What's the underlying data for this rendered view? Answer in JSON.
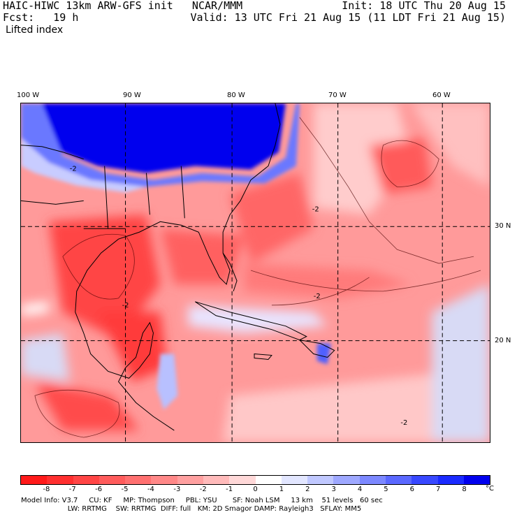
{
  "header": {
    "title": "HAIC-HIWC 13km ARW-GFS init   NCAR/MMM",
    "forecast": "Fcst:   19 h",
    "field": "Lifted index",
    "init": "Init: 18 UTC Thu 20 Aug 15",
    "valid": "Valid: 13 UTC Fri 21 Aug 15 (11 LDT Fri 21 Aug 15)"
  },
  "axes": {
    "longitudes": [
      "100 W",
      "90 W",
      "80 W",
      "70 W",
      "60 W"
    ],
    "latitudes": [
      "30 N",
      "20 N"
    ]
  },
  "contour_labels": [
    "-2",
    "-2",
    "-2",
    "-2",
    "-2"
  ],
  "colorbar": {
    "labels": [
      "-8",
      "-7",
      "-6",
      "-5",
      "-4",
      "-3",
      "-2",
      "-1",
      "0",
      "1",
      "2",
      "3",
      "4",
      "5",
      "6",
      "7",
      "8"
    ],
    "unit": "°C",
    "colors": [
      "#ff1a1a",
      "#ff2f2f",
      "#ff4545",
      "#ff5c5c",
      "#ff7070",
      "#ff8888",
      "#ffa0a0",
      "#ffbaba",
      "#ffd8d8",
      "#ffffff",
      "#e2e6ff",
      "#c0c8ff",
      "#9ea8ff",
      "#7c88ff",
      "#5a68ff",
      "#3848ff",
      "#1a2aff",
      "#0000ee"
    ]
  },
  "model_info": {
    "line1": "Model Info: V3.7     CU: KF     MP: Thompson     PBL: YSU       SF: Noah LSM     13 km    51 levels   60 sec",
    "line2": "                     LW: RRTMG    SW: RRTMG  DIFF: full   KM: 2D Smagor DAMP: Rayleigh3   SFLAY: MM5"
  }
}
